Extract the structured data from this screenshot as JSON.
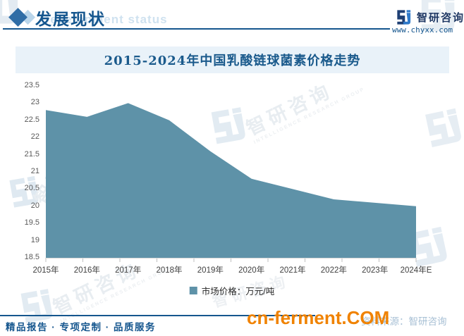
{
  "header": {
    "title_cn": "发展现状",
    "title_en": "Development status"
  },
  "logo": {
    "name": "智研咨询",
    "url": "www.chyxx.com"
  },
  "watermark": {
    "cn": "智研咨询",
    "en": "INTELLIGENCE RESEARCH GROUP"
  },
  "chart_data": {
    "type": "area",
    "title": "2015-2024年中国乳酸链球菌素价格走势",
    "categories": [
      "2015年",
      "2016年",
      "2017年",
      "2018年",
      "2019年",
      "2020年",
      "2021年",
      "2022年",
      "2023年",
      "2024年E"
    ],
    "series": [
      {
        "name": "市场价格：万元/吨",
        "values": [
          22.8,
          22.6,
          23.0,
          22.5,
          21.6,
          20.8,
          20.5,
          20.2,
          20.1,
          20.0
        ]
      }
    ],
    "xlabel": "",
    "ylabel": "",
    "ylim": [
      18.5,
      23.5
    ],
    "yticks": [
      "23.5",
      "23",
      "22.5",
      "22",
      "21.5",
      "21",
      "20.5",
      "20",
      "19.5",
      "19",
      "18.5"
    ],
    "grid": "off",
    "legend_position": "bottom",
    "area_color": "#5e92a8"
  },
  "colors": {
    "accent_blue": "#15568e",
    "area_fill": "#5e92a8",
    "title_band_bg": "#e9f2f9",
    "orange_watermark": "#f08200"
  },
  "footer": {
    "slogan": "精品报告 · 专项定制 · 品质服务",
    "source_ghost": "资料来源：智研咨询",
    "site_watermark": "cn-ferment.COM"
  }
}
